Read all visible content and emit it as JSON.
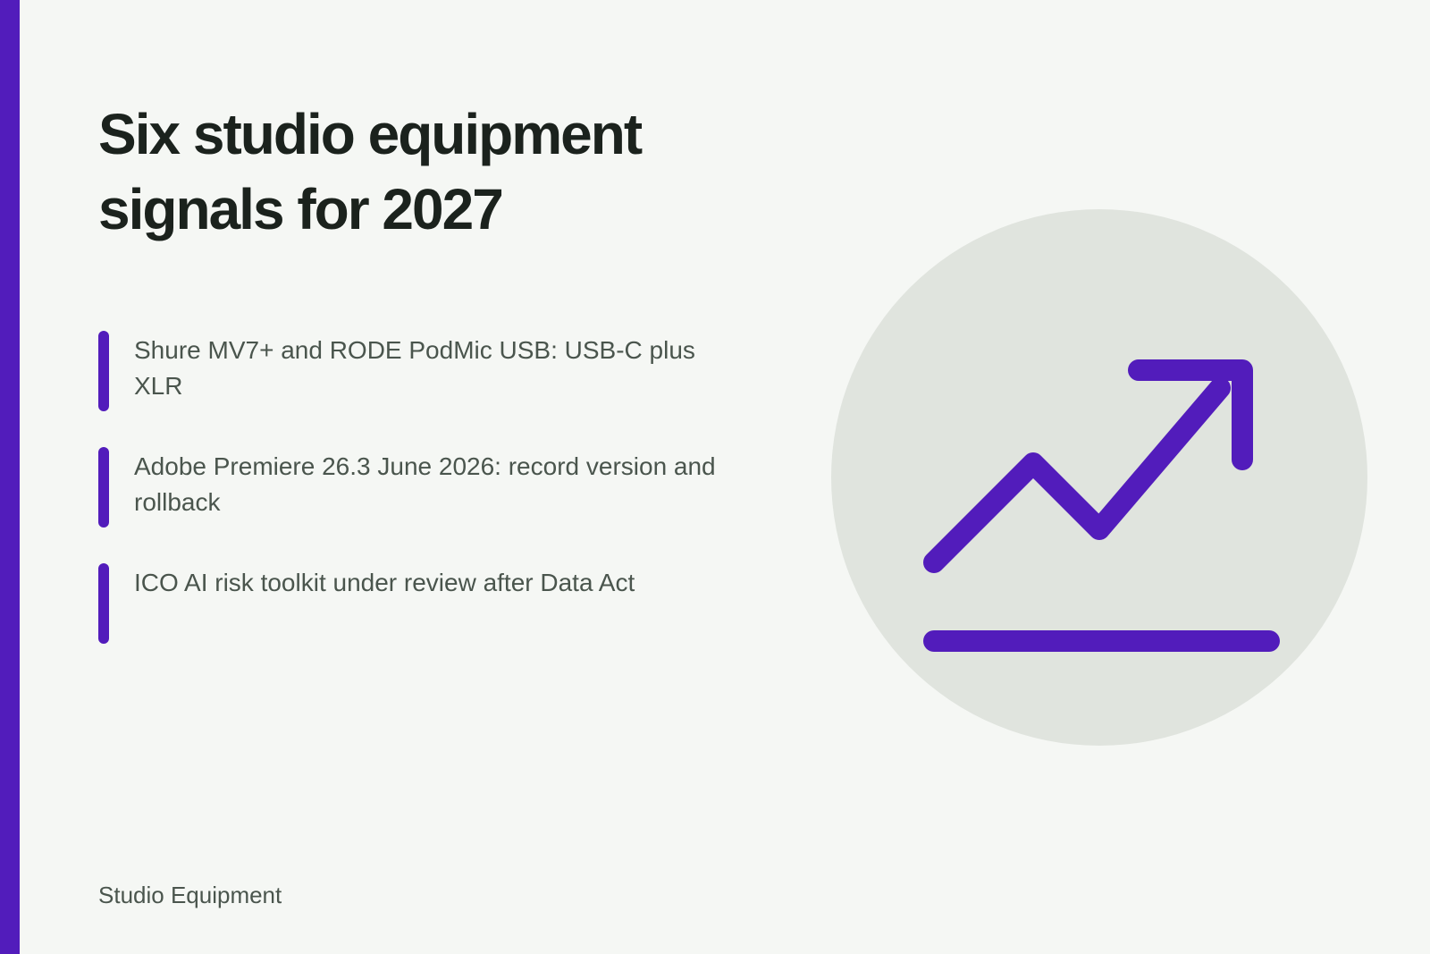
{
  "slide": {
    "title": "Six studio equipment signals for 2027",
    "bullets": [
      {
        "text": "Shure MV7+ and RODE PodMic USB: USB-C plus XLR"
      },
      {
        "text": "Adobe Premiere 26.3 June 2026: record version and rollback"
      },
      {
        "text": "ICO AI risk toolkit under review after Data Act"
      }
    ],
    "footer": "Studio Equipment",
    "icon": "trend-up-icon",
    "colors": {
      "accent": "#521cbb",
      "background": "#f5f7f4",
      "circle": "#e0e4de",
      "title": "#1b221d",
      "body": "#4a554d"
    }
  }
}
